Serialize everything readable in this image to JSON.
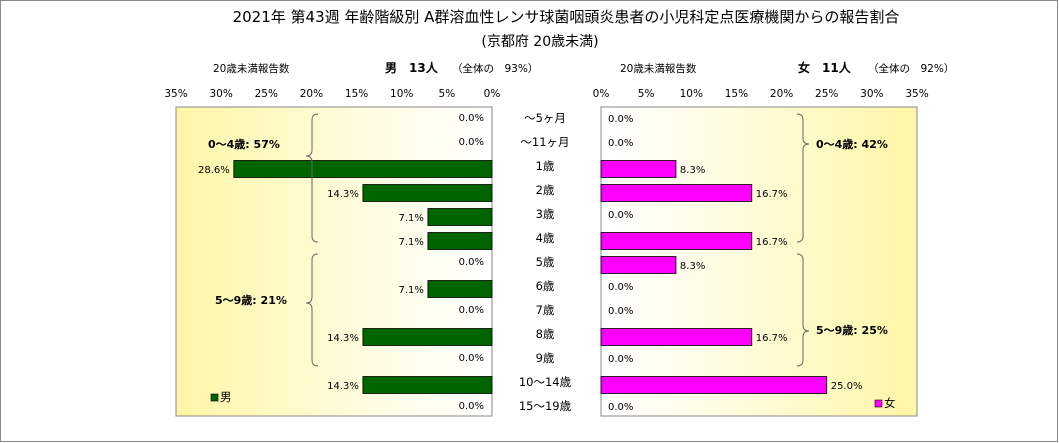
{
  "chart_data": {
    "type": "bar",
    "title": "2021年 第43週 年齢階級別 A群溶血性レンサ球菌咽頭炎患者の小児科定点医療機関からの報告割合",
    "subtitle": "(京都府 20歳未満)",
    "categories": [
      "～5ヶ月",
      "～11ヶ月",
      "1歳",
      "2歳",
      "3歳",
      "4歳",
      "5歳",
      "6歳",
      "7歳",
      "8歳",
      "9歳",
      "10～14歳",
      "15～19歳"
    ],
    "xlim": [
      0,
      35
    ],
    "ticks": [
      "0%",
      "5%",
      "10%",
      "15%",
      "20%",
      "25%",
      "30%",
      "35%"
    ],
    "tick_values": [
      0,
      5,
      10,
      15,
      20,
      25,
      30,
      35
    ],
    "series": [
      {
        "name": "男",
        "color": "#006400",
        "values": [
          0.0,
          0.0,
          28.6,
          14.3,
          7.1,
          7.1,
          0.0,
          7.1,
          0.0,
          14.3,
          0.0,
          14.3,
          0.0
        ],
        "labels": [
          "0.0%",
          "0.0%",
          "28.6%",
          "14.3%",
          "7.1%",
          "7.1%",
          "0.0%",
          "7.1%",
          "0.0%",
          "14.3%",
          "0.0%",
          "14.3%",
          "0.0%"
        ],
        "header_caption": "20歳未満報告数",
        "header": "男　13人",
        "header_note": "（全体の　93%）",
        "groups": [
          "0～4歳: 57%",
          "5～9歳: 21%"
        ]
      },
      {
        "name": "女",
        "color": "#ff00ff",
        "values": [
          0.0,
          0.0,
          8.3,
          16.7,
          0.0,
          16.7,
          8.3,
          0.0,
          0.0,
          16.7,
          0.0,
          25.0,
          0.0
        ],
        "labels": [
          "0.0%",
          "0.0%",
          "8.3%",
          "16.7%",
          "0.0%",
          "16.7%",
          "8.3%",
          "0.0%",
          "0.0%",
          "16.7%",
          "0.0%",
          "25.0%",
          "0.0%"
        ],
        "header_caption": "20歳未満報告数",
        "header": "女　11人",
        "header_note": "（全体の　92%）",
        "groups": [
          "0～4歳: 42%",
          "5～9歳: 25%"
        ]
      }
    ],
    "legend_placement": "bottom-left (男), bottom-right (女)",
    "grid": false
  }
}
